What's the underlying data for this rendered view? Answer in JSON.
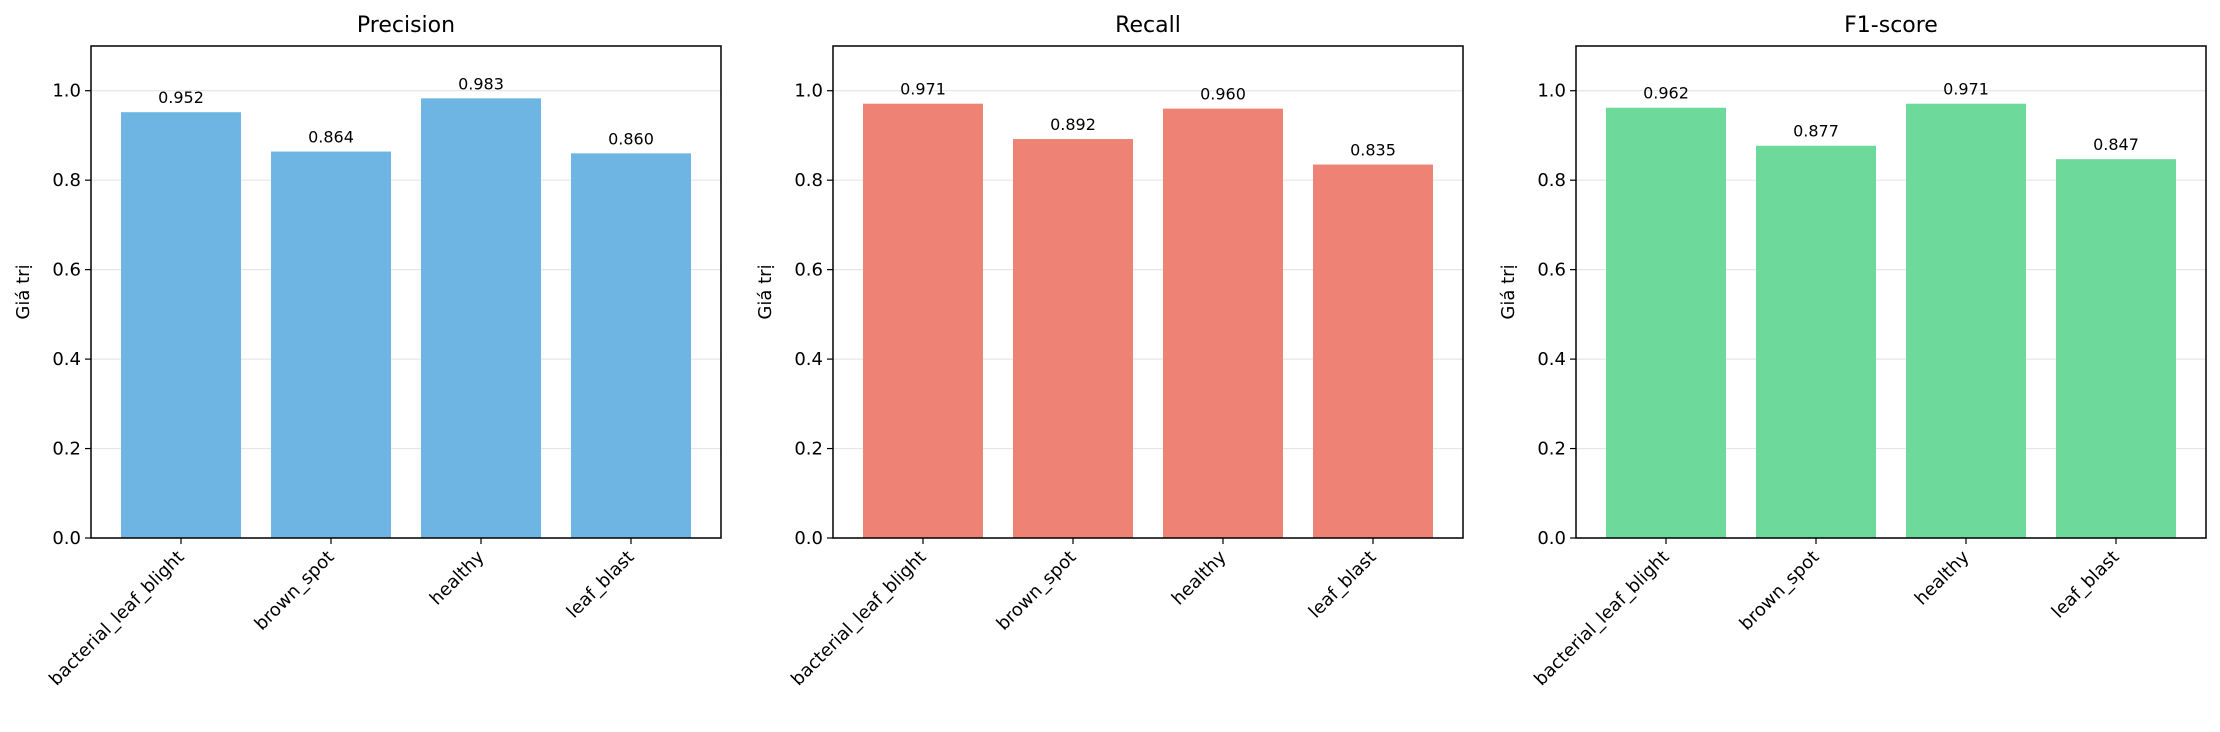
{
  "chart_data": [
    {
      "type": "bar",
      "title": "Precision",
      "ylabel": "Giá trị",
      "xlabel": "",
      "categories": [
        "bacterial_leaf_blight",
        "brown_spot",
        "healthy",
        "leaf_blast"
      ],
      "values": [
        0.952,
        0.864,
        0.983,
        0.86
      ],
      "value_labels": [
        "0.952",
        "0.864",
        "0.983",
        "0.860"
      ],
      "ylim": [
        0,
        1.1
      ],
      "yticks": [
        0.0,
        0.2,
        0.4,
        0.6,
        0.8,
        1.0
      ],
      "ytick_labels": [
        "0.0",
        "0.2",
        "0.4",
        "0.6",
        "0.8",
        "1.0"
      ],
      "grid": "y",
      "color": "#6fb5e4"
    },
    {
      "type": "bar",
      "title": "Recall",
      "ylabel": "Giá trị",
      "xlabel": "",
      "categories": [
        "bacterial_leaf_blight",
        "brown_spot",
        "healthy",
        "leaf_blast"
      ],
      "values": [
        0.971,
        0.892,
        0.96,
        0.835
      ],
      "value_labels": [
        "0.971",
        "0.892",
        "0.960",
        "0.835"
      ],
      "ylim": [
        0,
        1.1
      ],
      "yticks": [
        0.0,
        0.2,
        0.4,
        0.6,
        0.8,
        1.0
      ],
      "ytick_labels": [
        "0.0",
        "0.2",
        "0.4",
        "0.6",
        "0.8",
        "1.0"
      ],
      "grid": "y",
      "color": "#ee8275"
    },
    {
      "type": "bar",
      "title": "F1-score",
      "ylabel": "Giá trị",
      "xlabel": "",
      "categories": [
        "bacterial_leaf_blight",
        "brown_spot",
        "healthy",
        "leaf_blast"
      ],
      "values": [
        0.962,
        0.877,
        0.971,
        0.847
      ],
      "value_labels": [
        "0.962",
        "0.877",
        "0.971",
        "0.847"
      ],
      "ylim": [
        0,
        1.1
      ],
      "yticks": [
        0.0,
        0.2,
        0.4,
        0.6,
        0.8,
        1.0
      ],
      "ytick_labels": [
        "0.0",
        "0.2",
        "0.4",
        "0.6",
        "0.8",
        "1.0"
      ],
      "grid": "y",
      "color": "#6dd99a"
    }
  ]
}
